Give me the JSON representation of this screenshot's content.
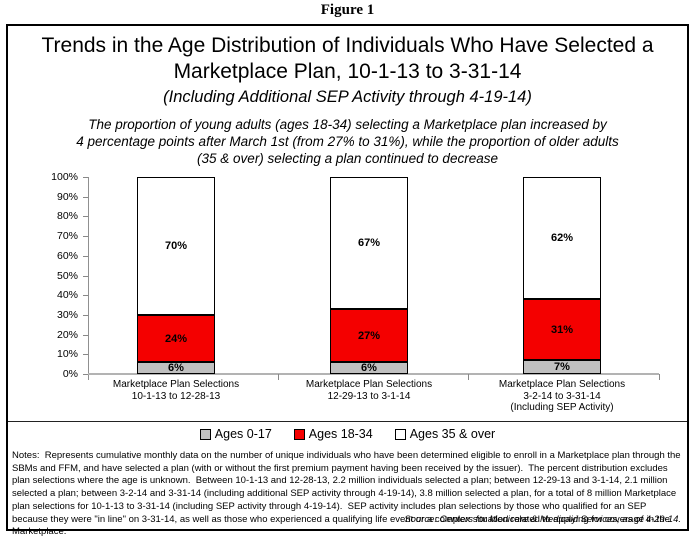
{
  "figure_label": "Figure 1",
  "header": {
    "title_lines": [
      "Trends in the Age Distribution of Individuals Who Have Selected a",
      "Marketplace Plan, 10-1-13 to 3-31-14"
    ],
    "subtitle": "(Including Additional SEP Activity through 4-19-14)",
    "description_lines": [
      "The proportion of young adults (ages 18-34) selecting a Marketplace plan increased by",
      "4 percentage points after March 1st (from 27% to 31%), while the proportion of older adults",
      "(35 & over) selecting a plan continued to decrease"
    ]
  },
  "chart_data": {
    "type": "bar",
    "stacked": true,
    "orientation": "vertical",
    "title": "Trends in the Age Distribution of Individuals Who Have Selected a Marketplace Plan, 10-1-13 to 3-31-14",
    "categories": [
      [
        "Marketplace Plan Selections",
        "10-1-13 to 12-28-13"
      ],
      [
        "Marketplace Plan Selections",
        "12-29-13 to 3-1-14"
      ],
      [
        "Marketplace Plan Selections",
        "3-2-14 to 3-31-14",
        "(Including SEP Activity)"
      ]
    ],
    "series": [
      {
        "name": "Ages 0-17",
        "color": "#c0c0c0",
        "values": [
          6,
          6,
          7
        ]
      },
      {
        "name": "Ages 18-34",
        "color": "#f40000",
        "values": [
          24,
          27,
          31
        ]
      },
      {
        "name": "Ages 35 & over",
        "color": "#ffffff",
        "values": [
          70,
          67,
          62
        ]
      }
    ],
    "value_suffix": "%",
    "ylabel": "",
    "xlabel": "",
    "ylim": [
      0,
      100
    ],
    "ytick_step": 10,
    "ytick_suffix": "%",
    "legend_position": "bottom",
    "grid": false
  },
  "footer": {
    "notes": "Notes:  Represents cumulative monthly data on the number of unique individuals who have been determined eligible to enroll in a Marketplace plan through the SBMs and FFM, and have selected a plan (with or without the first premium payment having been received by the issuer).  The percent distribution excludes plan selections where the age is unknown.  Between 10-1-13 and 12-28-13, 2.2 million individuals selected a plan; between 12-29-13 and 3-1-14, 2.1 million selected a plan; between 3-2-14 and 3-31-14 (including additional SEP activity through 4-19-14), 3.8 million selected a plan, for a total of 8 million Marketplace plan selections for 10-1-13 to 3-31-14 (including SEP activity through 4-19-14).  SEP activity includes plan selections by those who qualified for an SEP because they were \"in line\" on 3-31-14, as well as those who experienced a qualifying life event or a complex situation related to applying for coverage in the Marketplace.",
    "source": "Source:  Centers for Medicare & Medicaid Services, as of 4-29-14."
  }
}
